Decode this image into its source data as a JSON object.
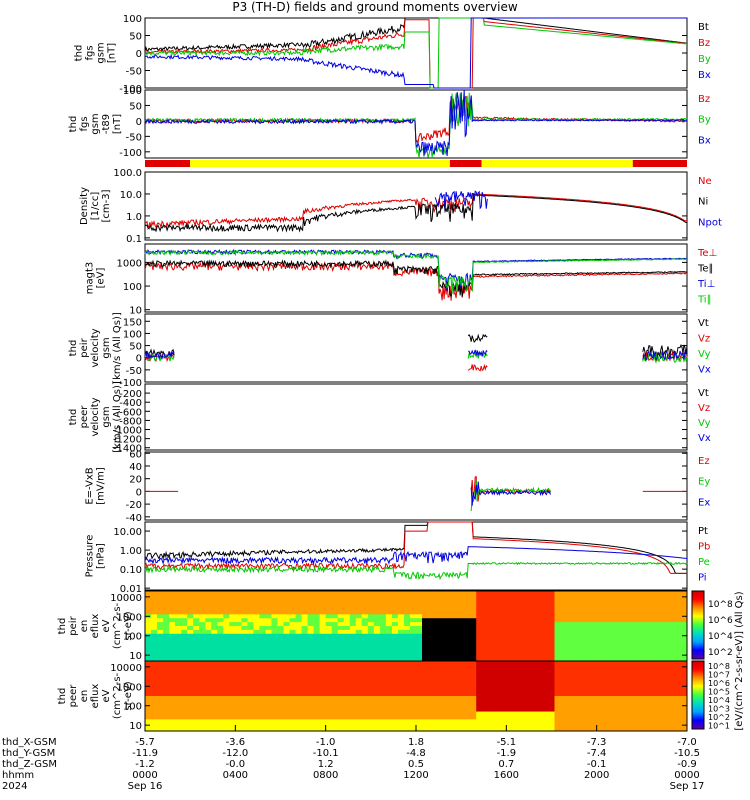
{
  "title": "P3 (TH-D) fields and ground moments overview",
  "colors": {
    "black": "#000000",
    "red": "#e00000",
    "green": "#00c800",
    "blue": "#0000e0"
  },
  "chart_data": [
    {
      "type": "line",
      "ylabel": [
        "thd",
        "fgs",
        "gsm",
        "[nT]"
      ],
      "yticks": [
        "100",
        "50",
        "0",
        "-50",
        "-100"
      ],
      "ylim": [
        -100,
        100
      ],
      "legend": [
        {
          "name": "Bt",
          "color": "black"
        },
        {
          "name": "Bz",
          "color": "red"
        },
        {
          "name": "By",
          "color": "green"
        },
        {
          "name": "Bx",
          "color": "blue"
        }
      ]
    },
    {
      "type": "line",
      "ylabel": [
        "thd",
        "fgs",
        "gsm",
        "-t89",
        "[nT]"
      ],
      "yticks": [
        "100",
        "50",
        "0",
        "-50",
        "-100"
      ],
      "ylim": [
        -120,
        100
      ],
      "legend": [
        {
          "name": "Bz",
          "color": "red"
        },
        {
          "name": "By",
          "color": "green"
        },
        {
          "name": "Bx",
          "color": "blue"
        }
      ]
    },
    {
      "type": "bar",
      "name": "mode bar",
      "segments": [
        {
          "from": 0,
          "to": 2,
          "color": "red"
        },
        {
          "from": 2,
          "to": 13.5,
          "color": "yellow"
        },
        {
          "from": 13.5,
          "to": 14.9,
          "color": "red"
        },
        {
          "from": 14.9,
          "to": 21.6,
          "color": "yellow"
        },
        {
          "from": 21.6,
          "to": 24,
          "color": "red"
        }
      ]
    },
    {
      "type": "line",
      "ylabel": [
        "Density",
        "[1/cc]",
        "[cm-3]"
      ],
      "yticks": [
        "100.0",
        "10.0",
        "1.0",
        "0.1"
      ],
      "ylim": [
        0.08,
        100
      ],
      "log": true,
      "legend": [
        {
          "name": "Ne",
          "color": "red"
        },
        {
          "name": "Ni",
          "color": "black"
        },
        {
          "name": "Npot",
          "color": "blue"
        }
      ]
    },
    {
      "type": "line",
      "ylabel": [
        "magt3",
        "[eV]"
      ],
      "yticks": [
        "1000",
        "100",
        "10"
      ],
      "ylim": [
        8,
        6000
      ],
      "log": true,
      "legend": [
        {
          "name": "Te⊥",
          "color": "red"
        },
        {
          "name": "Te∥",
          "color": "black"
        },
        {
          "name": "Ti⊥",
          "color": "blue"
        },
        {
          "name": "Ti∥",
          "color": "green"
        }
      ]
    },
    {
      "type": "line",
      "ylabel": [
        "thd",
        "peir",
        "velocity",
        "gsm",
        "[km/s (All Qs)]"
      ],
      "yticks": [
        "150",
        "100",
        "50",
        "0",
        "-50",
        "-100"
      ],
      "ylim": [
        -100,
        180
      ],
      "legend": [
        {
          "name": "Vt",
          "color": "black"
        },
        {
          "name": "Vz",
          "color": "red"
        },
        {
          "name": "Vy",
          "color": "green"
        },
        {
          "name": "Vx",
          "color": "blue"
        }
      ]
    },
    {
      "type": "line",
      "ylabel": [
        "thd",
        "peer",
        "velocity",
        "gsm",
        "[km/s (All Qs)]"
      ],
      "yticks": [
        "-200",
        "-400",
        "-600",
        "-800",
        "-1000",
        "-1200",
        "-1400"
      ],
      "ylim": [
        -1450,
        0
      ],
      "legend": [
        {
          "name": "Vt",
          "color": "black"
        },
        {
          "name": "Vz",
          "color": "red"
        },
        {
          "name": "Vy",
          "color": "green"
        },
        {
          "name": "Vx",
          "color": "blue"
        }
      ]
    },
    {
      "type": "line",
      "ylabel": [
        "E=-VxB",
        "[mV/m]"
      ],
      "yticks": [
        "60",
        "40",
        "20",
        "0",
        "-20",
        "-40"
      ],
      "ylim": [
        -45,
        62
      ],
      "legend": [
        {
          "name": "Ez",
          "color": "red"
        },
        {
          "name": "Ey",
          "color": "green"
        },
        {
          "name": "Ex",
          "color": "blue"
        }
      ]
    },
    {
      "type": "line",
      "ylabel": [
        "Pressure",
        "[nPa]"
      ],
      "yticks": [
        "10.00",
        "1.00",
        "0.10",
        "0.01"
      ],
      "ylim": [
        0.008,
        30
      ],
      "log": true,
      "legend": [
        {
          "name": "Pt",
          "color": "black"
        },
        {
          "name": "Pb",
          "color": "red"
        },
        {
          "name": "Pe",
          "color": "green"
        },
        {
          "name": "Pi",
          "color": "blue"
        }
      ]
    },
    {
      "type": "heatmap",
      "ylabel": [
        "thd",
        "peir",
        "en",
        "eflux",
        "eV",
        "(cm^2-s-",
        "sr-eV)"
      ],
      "yticks": [
        "10000",
        "1000",
        "100",
        "10"
      ],
      "ylim": [
        5,
        20000
      ],
      "log": true
    },
    {
      "type": "heatmap",
      "ylabel": [
        "thd",
        "peer",
        "en",
        "eflux",
        "eV",
        "(cm^2-s-",
        "sr-eV)"
      ],
      "yticks": [
        "10000",
        "1000",
        "100",
        "10"
      ],
      "ylim": [
        5,
        20000
      ],
      "log": true
    }
  ],
  "colorbar": {
    "label": "[eV/(cm^2-s-sr-eV)] (All Qs)",
    "ticks": [
      "10^8",
      "10^6",
      "10^4",
      "10^2"
    ],
    "ticks2": [
      "10^8",
      "10^7",
      "10^6",
      "10^5",
      "10^4",
      "10^3",
      "10^2",
      "10^1"
    ]
  },
  "xaxis": {
    "rows": [
      {
        "label": "thd_X-GSM",
        "values": [
          "-5.7",
          "-3.6",
          "-1.0",
          "1.8",
          "-5.1",
          "-7.3",
          "-7.0"
        ]
      },
      {
        "label": "thd_Y-GSM",
        "values": [
          "-11.9",
          "-12.0",
          "-10.1",
          "-4.8",
          "-1.9",
          "-7.4",
          "-10.5"
        ]
      },
      {
        "label": "thd_Z-GSM",
        "values": [
          "-1.2",
          "-0.0",
          "1.2",
          "0.5",
          "0.7",
          "-0.1",
          "-0.9"
        ]
      },
      {
        "label": "hhmm",
        "values": [
          "0000",
          "0400",
          "0800",
          "1200",
          "1600",
          "2000",
          "0000"
        ]
      },
      {
        "label": "2024",
        "values": [
          "Sep 16",
          "",
          "",
          "",
          "",
          "",
          "Sep 17"
        ]
      }
    ]
  }
}
